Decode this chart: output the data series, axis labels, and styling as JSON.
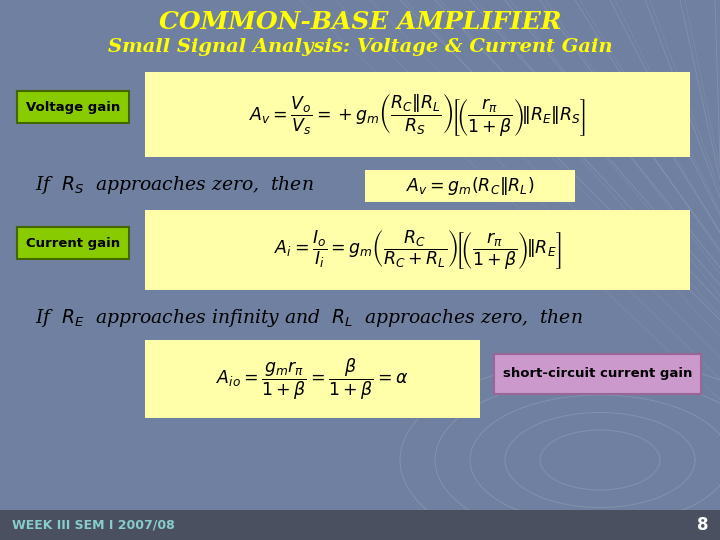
{
  "title1": "COMMON-BASE AMPLIFIER",
  "title2": "Small Signal Analysis: Voltage & Current Gain",
  "title_color": "#FFFF00",
  "bg_color": "#7080a0",
  "yellow_box_color": "#FFFFAA",
  "voltage_label": "Voltage gain",
  "voltage_label_bg": "#88CC00",
  "current_label": "Current gain",
  "current_label_bg": "#88CC00",
  "short_circuit_label": "short-circuit current gain",
  "short_circuit_bg": "#CC99CC",
  "week_text": "WEEK III SEM I 2007/08",
  "week_color": "#88CCCC",
  "page_num": "8",
  "footer_bg": "#4a5060",
  "grid_color": "#aaaacc",
  "text_black": "#111111",
  "text_white": "#ffffff"
}
